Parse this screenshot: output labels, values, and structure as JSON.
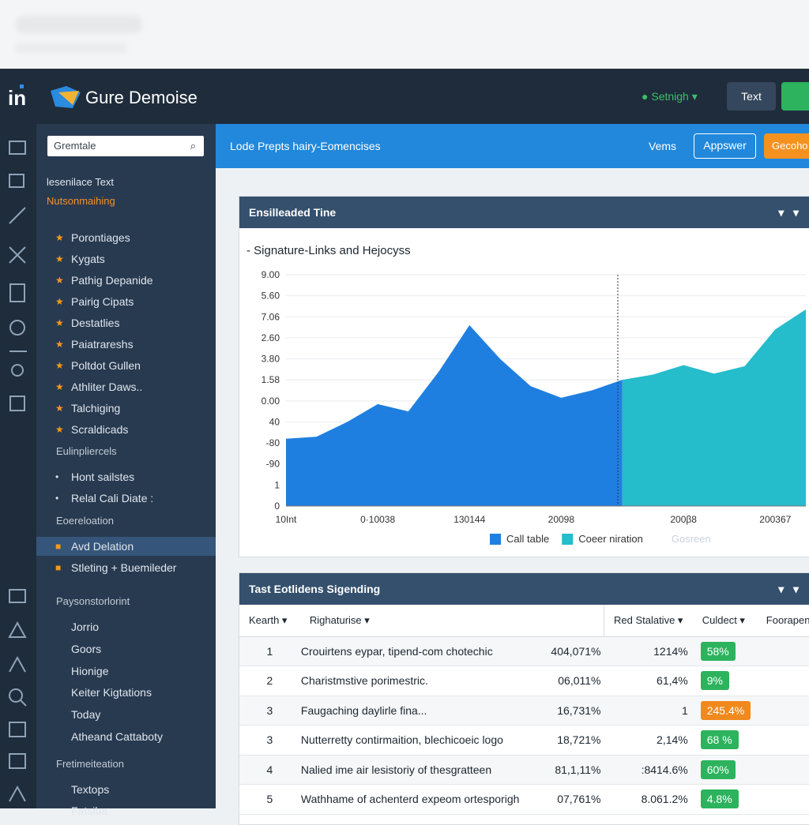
{
  "header": {
    "logo": "in",
    "brand": "Gure Demoise",
    "status": "Setnigh",
    "button": "Text"
  },
  "search": {
    "placeholder": "Gremtale"
  },
  "nav": {
    "intro": "lesenilace Text",
    "highlight": "Nutsonmaihing",
    "sections": [
      {
        "title": null,
        "marker": "star",
        "items": [
          "Porontiages",
          "Kygats",
          "Pathig Depanide",
          "Pairig Cipats",
          "Destatlies",
          "Paiatrareshs",
          "Poltdot Gullen",
          "Athliter Daws..",
          "Talchiging",
          "Scraldicads"
        ]
      },
      {
        "title": "Eulinpliercels",
        "marker": "dot",
        "items": [
          "Hont sailstes",
          "Relal Cali Diate :"
        ]
      },
      {
        "title": "Eoereloation",
        "marker": "square",
        "items": [
          "Avd Delation",
          "Stleting + Buemileder"
        ]
      },
      {
        "title": "Paysonstorlorint",
        "marker": "none",
        "items": [
          "Jorrio",
          "Goors",
          "Hionige",
          "Keiter Kigtations",
          "Today",
          "Atheand Cattaboty"
        ]
      },
      {
        "title": "Fretimeiteation",
        "marker": "none",
        "items": [
          "Textops",
          "Fatsiba"
        ]
      }
    ]
  },
  "toolbar": {
    "title": "Lode Prepts hairy-Eomencises",
    "link": "Vems",
    "primary": "Appswer",
    "secondary": "Gecoho"
  },
  "chart_panel": {
    "header": "Ensilleaded Tine"
  },
  "chart_data": {
    "type": "area",
    "title": "- Signature-Links and Hejocyss",
    "categories": [
      "10Int",
      null,
      null,
      "0·10038",
      null,
      null,
      "130144",
      null,
      null,
      "20098",
      null,
      null,
      null,
      "200β8",
      null,
      null,
      "200367",
      null
    ],
    "series": [
      {
        "name": "Call table",
        "color": "#1f7fe0",
        "values": [
          3.2,
          3.3,
          4.0,
          4.85,
          4.5,
          6.4,
          8.6,
          7.0,
          5.7,
          5.15,
          5.5,
          6.0,
          null,
          null,
          null,
          null,
          null,
          null
        ]
      },
      {
        "name": "Coeer niration",
        "color": "#25bccc",
        "values": [
          null,
          null,
          null,
          null,
          null,
          null,
          null,
          null,
          null,
          null,
          null,
          6.0,
          6.25,
          6.7,
          6.3,
          6.65,
          8.4,
          9.35
        ]
      }
    ],
    "extra_legend": "Gosreen",
    "ylim": [
      0,
      11
    ],
    "yticks": [
      {
        "value": 0,
        "label": "0"
      },
      {
        "value": 1,
        "label": "1"
      },
      {
        "value": 2,
        "label": "-90"
      },
      {
        "value": 3,
        "label": "-80"
      },
      {
        "value": 4,
        "label": "40"
      },
      {
        "value": 5,
        "label": "0.00"
      },
      {
        "value": 6,
        "label": "1.58"
      },
      {
        "value": 7,
        "label": "3.80"
      },
      {
        "value": 8,
        "label": "2.60"
      },
      {
        "value": 9,
        "label": "7.06"
      },
      {
        "value": 10,
        "label": "5.60"
      },
      {
        "value": 11,
        "label": "9.00"
      }
    ],
    "grid": true
  },
  "table": {
    "header": "Tast Eotlidens Sigending",
    "columns": [
      "Kearth",
      "Righaturise",
      "Red Stalative",
      "Culdect",
      "Foorapen"
    ],
    "rows": [
      {
        "num": "1",
        "name": "Crouirtens eypar, tipend-com chotechic",
        "a": "404,071%",
        "b": "1214%",
        "badge": "58%",
        "badge_color": "#2db35d"
      },
      {
        "num": "2",
        "name": "Charistmstive porimestric.",
        "a": "06,011%",
        "b": "61,4%",
        "badge": "9%",
        "badge_color": "#2db35d"
      },
      {
        "num": "3",
        "name": "Faugaching daylirle fina...",
        "a": "16,731%",
        "b": "1",
        "badge": "245.4%",
        "badge_color": "#f0891e"
      },
      {
        "num": "3",
        "name": "Nutterretty contirmaition, blechicoeic logo",
        "a": "18,721%",
        "b": "2,14%",
        "badge": "68 %",
        "badge_color": "#2db35d"
      },
      {
        "num": "4",
        "name": "Nalied ime air lesistoriy of thesgratteen",
        "a": "81,1,11%",
        "b": ":8414.6%",
        "badge": "60%",
        "badge_color": "#2db35d"
      },
      {
        "num": "5",
        "name": "Wathhame of achenterd expeom ortesporigh",
        "a": "07,761%",
        "b": "8.061.2%",
        "badge": "4.8%",
        "badge_color": "#2db35d"
      }
    ]
  }
}
